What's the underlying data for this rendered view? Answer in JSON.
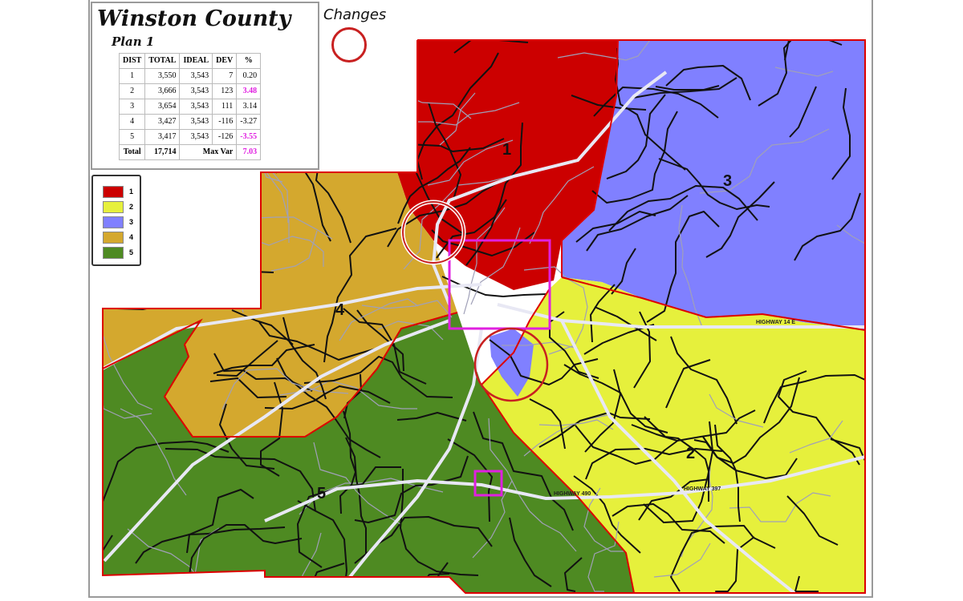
{
  "title": "Winston County",
  "subtitle": "Plan 1",
  "changes_label": "Changes",
  "table": {
    "headers": [
      "DIST",
      "TOTAL",
      "IDEAL",
      "DEV",
      "%"
    ],
    "rows": [
      {
        "dist": "1",
        "total": "3,550",
        "ideal": "3,543",
        "dev": "7",
        "pct": "0.20",
        "highlight": false
      },
      {
        "dist": "2",
        "total": "3,666",
        "ideal": "3,543",
        "dev": "123",
        "pct": "3.48",
        "highlight": true
      },
      {
        "dist": "3",
        "total": "3,654",
        "ideal": "3,543",
        "dev": "111",
        "pct": "3.14",
        "highlight": false
      },
      {
        "dist": "4",
        "total": "3,427",
        "ideal": "3,543",
        "dev": "-116",
        "pct": "-3.27",
        "highlight": false
      },
      {
        "dist": "5",
        "total": "3,417",
        "ideal": "3,543",
        "dev": "-126",
        "pct": "-3.55",
        "highlight": true
      }
    ],
    "total_label": "Total",
    "total_value": "17,714",
    "maxvar_label": "Max Var",
    "maxvar_value": "7.03"
  },
  "legend": [
    {
      "label": "1",
      "color": "#cc0000"
    },
    {
      "label": "2",
      "color": "#e6f03c"
    },
    {
      "label": "3",
      "color": "#8080ff"
    },
    {
      "label": "4",
      "color": "#d4a82e"
    },
    {
      "label": "5",
      "color": "#4e8a22"
    }
  ],
  "districts": [
    {
      "id": "1",
      "label": "1",
      "color": "#cc0000"
    },
    {
      "id": "2",
      "label": "2",
      "color": "#e6f03c"
    },
    {
      "id": "3",
      "label": "3",
      "color": "#8080ff"
    },
    {
      "id": "4",
      "label": "4",
      "color": "#d4a82e"
    },
    {
      "id": "5",
      "label": "5",
      "color": "#4e8a22"
    }
  ],
  "highways": [
    "HIGHWAY 14 E",
    "HIGHWAY 490",
    "HIGHWAY 397"
  ],
  "colors": {
    "boundary": "#dd0000",
    "change_circle": "#c82020",
    "precinct_box": "#e020e0",
    "highway": "#e8e8f4",
    "road": "#111111"
  }
}
